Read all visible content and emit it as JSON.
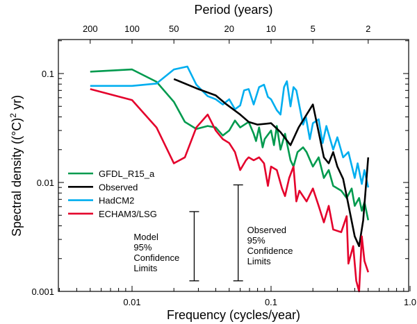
{
  "chart_data": {
    "type": "line",
    "title": "",
    "xlabel": "Frequency (cycles/year)",
    "ylabel": "Spectral density ((°C)² yr)",
    "ylabel_main": "Spectral density ((°C)",
    "ylabel_sup": "2",
    "ylabel_end": " yr)",
    "top_xlabel": "Period (years)",
    "x_scale": "log",
    "y_scale": "log",
    "xlim": [
      0.003,
      1.0
    ],
    "ylim": [
      0.001,
      0.2
    ],
    "x_ticks": [
      {
        "value": 0.01,
        "label": "0.01"
      },
      {
        "value": 0.1,
        "label": "0.1"
      },
      {
        "value": 1.0,
        "label": "1.0"
      }
    ],
    "y_ticks": [
      {
        "value": 0.001,
        "label": "0.001"
      },
      {
        "value": 0.01,
        "label": "0.01"
      },
      {
        "value": 0.1,
        "label": "0.1"
      }
    ],
    "top_ticks": [
      {
        "period": 200,
        "label": "200"
      },
      {
        "period": 100,
        "label": "100"
      },
      {
        "period": 50,
        "label": "50"
      },
      {
        "period": 20,
        "label": "20"
      },
      {
        "period": 10,
        "label": "10"
      },
      {
        "period": 5,
        "label": "5"
      },
      {
        "period": 2,
        "label": "2"
      }
    ],
    "grid": false,
    "legend_position": "center-left",
    "series": [
      {
        "name": "GFDL_R15_a",
        "color": "#009a4e",
        "points": [
          [
            0.005,
            0.104
          ],
          [
            0.01,
            0.109
          ],
          [
            0.015,
            0.084
          ],
          [
            0.02,
            0.055
          ],
          [
            0.024,
            0.036
          ],
          [
            0.029,
            0.031
          ],
          [
            0.035,
            0.033
          ],
          [
            0.04,
            0.032
          ],
          [
            0.045,
            0.027
          ],
          [
            0.05,
            0.03
          ],
          [
            0.055,
            0.037
          ],
          [
            0.06,
            0.032
          ],
          [
            0.069,
            0.036
          ],
          [
            0.075,
            0.028
          ],
          [
            0.078,
            0.024
          ],
          [
            0.082,
            0.032
          ],
          [
            0.087,
            0.021
          ],
          [
            0.09,
            0.025
          ],
          [
            0.1,
            0.03
          ],
          [
            0.105,
            0.022
          ],
          [
            0.11,
            0.033
          ],
          [
            0.117,
            0.02
          ],
          [
            0.126,
            0.028
          ],
          [
            0.138,
            0.016
          ],
          [
            0.145,
            0.014
          ],
          [
            0.155,
            0.019
          ],
          [
            0.17,
            0.021
          ],
          [
            0.18,
            0.019
          ],
          [
            0.2,
            0.014
          ],
          [
            0.22,
            0.017
          ],
          [
            0.24,
            0.011
          ],
          [
            0.26,
            0.013
          ],
          [
            0.28,
            0.0093
          ],
          [
            0.32,
            0.0084
          ],
          [
            0.35,
            0.0072
          ],
          [
            0.38,
            0.0088
          ],
          [
            0.4,
            0.0061
          ],
          [
            0.43,
            0.0072
          ],
          [
            0.45,
            0.0055
          ],
          [
            0.47,
            0.0066
          ],
          [
            0.5,
            0.0045
          ]
        ]
      },
      {
        "name": "Observed",
        "color": "#000000",
        "points": [
          [
            0.02,
            0.089
          ],
          [
            0.03,
            0.072
          ],
          [
            0.04,
            0.063
          ],
          [
            0.047,
            0.053
          ],
          [
            0.06,
            0.042
          ],
          [
            0.069,
            0.036
          ],
          [
            0.08,
            0.034
          ],
          [
            0.1,
            0.035
          ],
          [
            0.117,
            0.029
          ],
          [
            0.138,
            0.022
          ],
          [
            0.158,
            0.032
          ],
          [
            0.2,
            0.052
          ],
          [
            0.22,
            0.029
          ],
          [
            0.24,
            0.017
          ],
          [
            0.26,
            0.015
          ],
          [
            0.28,
            0.019
          ],
          [
            0.3,
            0.014
          ],
          [
            0.33,
            0.0108
          ],
          [
            0.35,
            0.0075
          ],
          [
            0.4,
            0.0032
          ],
          [
            0.43,
            0.0026
          ],
          [
            0.46,
            0.0045
          ],
          [
            0.5,
            0.017
          ]
        ]
      },
      {
        "name": "HadCM2",
        "color": "#00aeef",
        "points": [
          [
            0.005,
            0.077
          ],
          [
            0.01,
            0.077
          ],
          [
            0.015,
            0.081
          ],
          [
            0.02,
            0.109
          ],
          [
            0.025,
            0.116
          ],
          [
            0.029,
            0.079
          ],
          [
            0.035,
            0.062
          ],
          [
            0.04,
            0.058
          ],
          [
            0.045,
            0.052
          ],
          [
            0.05,
            0.058
          ],
          [
            0.055,
            0.047
          ],
          [
            0.06,
            0.051
          ],
          [
            0.064,
            0.07
          ],
          [
            0.069,
            0.072
          ],
          [
            0.075,
            0.052
          ],
          [
            0.082,
            0.075
          ],
          [
            0.089,
            0.079
          ],
          [
            0.095,
            0.061
          ],
          [
            0.1,
            0.058
          ],
          [
            0.11,
            0.046
          ],
          [
            0.117,
            0.042
          ],
          [
            0.124,
            0.075
          ],
          [
            0.13,
            0.085
          ],
          [
            0.138,
            0.05
          ],
          [
            0.145,
            0.075
          ],
          [
            0.152,
            0.07
          ],
          [
            0.17,
            0.034
          ],
          [
            0.178,
            0.04
          ],
          [
            0.19,
            0.025
          ],
          [
            0.2,
            0.035
          ],
          [
            0.22,
            0.038
          ],
          [
            0.235,
            0.023
          ],
          [
            0.25,
            0.033
          ],
          [
            0.28,
            0.02
          ],
          [
            0.3,
            0.026
          ],
          [
            0.33,
            0.017
          ],
          [
            0.36,
            0.019
          ],
          [
            0.4,
            0.011
          ],
          [
            0.42,
            0.015
          ],
          [
            0.45,
            0.0097
          ],
          [
            0.47,
            0.013
          ],
          [
            0.5,
            0.009
          ]
        ]
      },
      {
        "name": "ECHAM3/LSG",
        "color": "#e4002b",
        "points": [
          [
            0.005,
            0.072
          ],
          [
            0.01,
            0.057
          ],
          [
            0.015,
            0.032
          ],
          [
            0.02,
            0.015
          ],
          [
            0.024,
            0.017
          ],
          [
            0.029,
            0.032
          ],
          [
            0.035,
            0.042
          ],
          [
            0.04,
            0.03
          ],
          [
            0.045,
            0.025
          ],
          [
            0.05,
            0.023
          ],
          [
            0.055,
            0.019
          ],
          [
            0.06,
            0.013
          ],
          [
            0.066,
            0.016
          ],
          [
            0.069,
            0.017
          ],
          [
            0.075,
            0.016
          ],
          [
            0.082,
            0.017
          ],
          [
            0.089,
            0.015
          ],
          [
            0.095,
            0.0093
          ],
          [
            0.1,
            0.014
          ],
          [
            0.11,
            0.013
          ],
          [
            0.12,
            0.0088
          ],
          [
            0.126,
            0.0075
          ],
          [
            0.135,
            0.011
          ],
          [
            0.145,
            0.014
          ],
          [
            0.152,
            0.0067
          ],
          [
            0.16,
            0.0084
          ],
          [
            0.18,
            0.0067
          ],
          [
            0.2,
            0.0088
          ],
          [
            0.22,
            0.0061
          ],
          [
            0.24,
            0.0043
          ],
          [
            0.26,
            0.0061
          ],
          [
            0.28,
            0.0037
          ],
          [
            0.32,
            0.0035
          ],
          [
            0.35,
            0.0049
          ],
          [
            0.36,
            0.0018
          ],
          [
            0.39,
            0.0026
          ],
          [
            0.41,
            0.00125
          ],
          [
            0.43,
            0.001
          ],
          [
            0.45,
            0.0032
          ],
          [
            0.47,
            0.0019
          ],
          [
            0.5,
            0.0015
          ]
        ]
      }
    ],
    "annotations": [
      {
        "name": "model-confidence",
        "lines": [
          "Model",
          "95%",
          "Confidence",
          "Limits"
        ],
        "x": 0.028,
        "y_low": 0.00125,
        "y_high": 0.0054
      },
      {
        "name": "observed-confidence",
        "lines": [
          "Observed",
          "95%",
          "Confidence",
          "Limits"
        ],
        "x": 0.058,
        "y_low": 0.00125,
        "y_high": 0.0095
      }
    ]
  }
}
